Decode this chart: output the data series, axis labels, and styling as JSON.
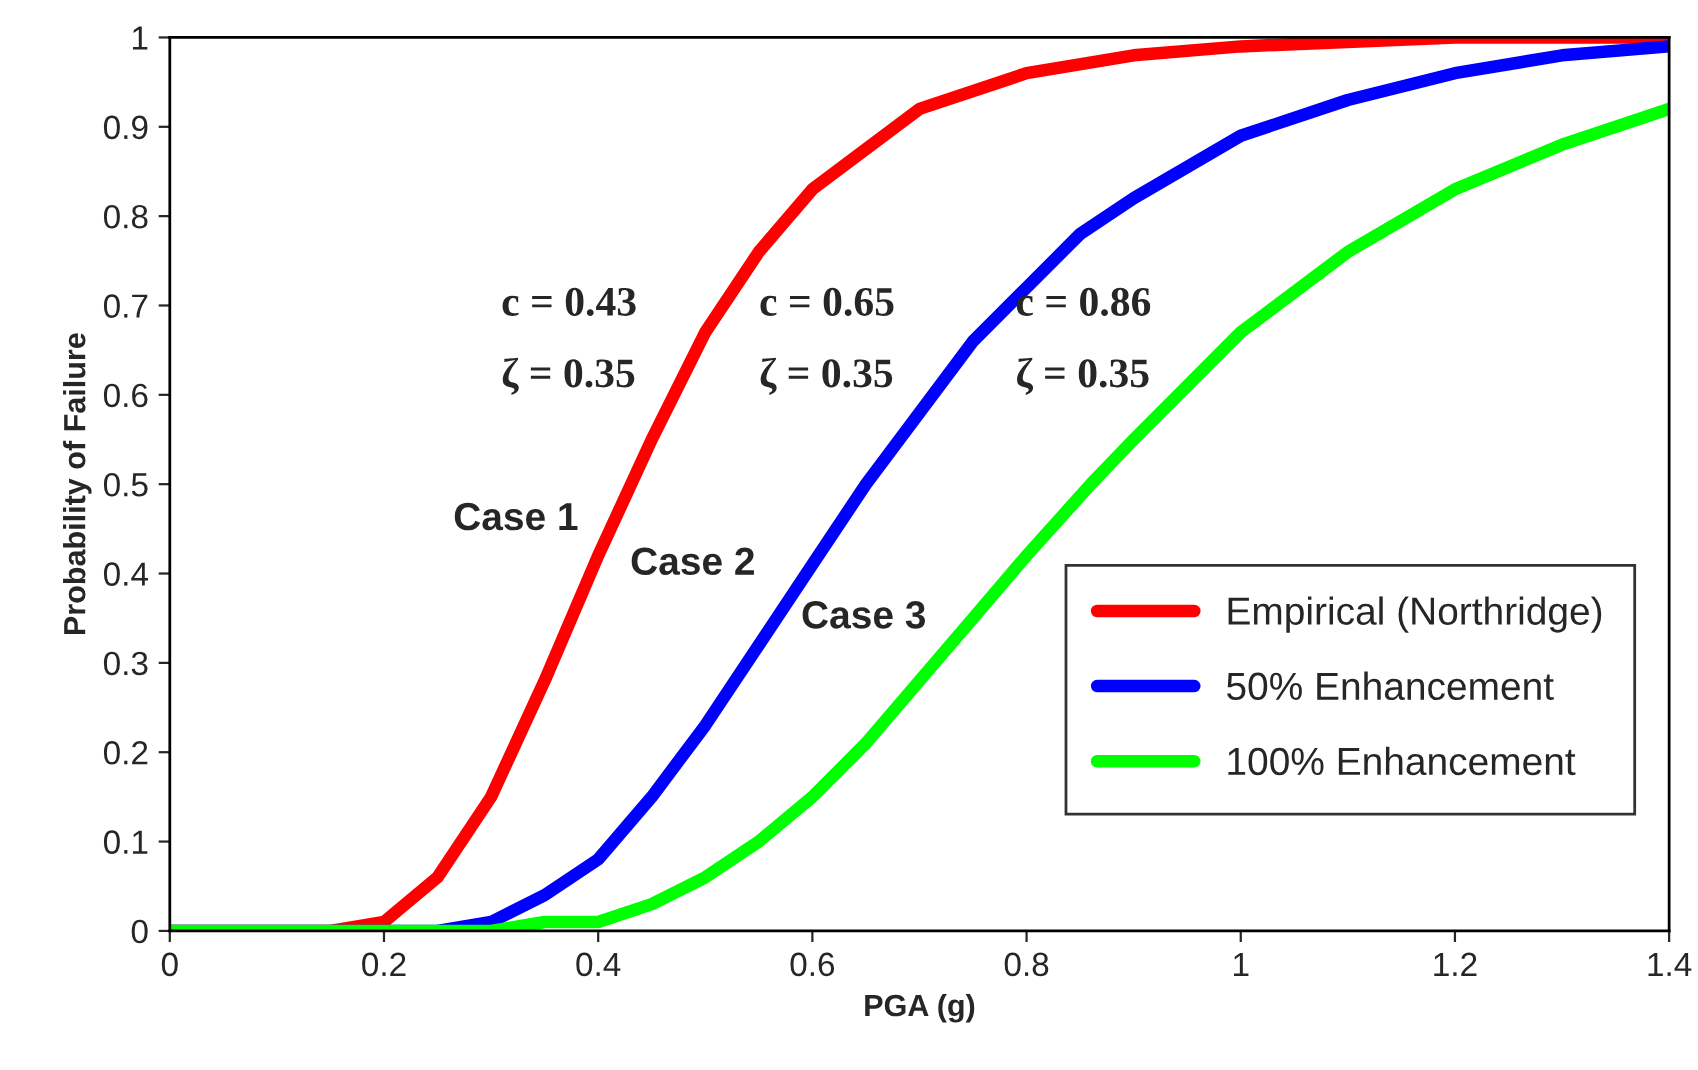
{
  "chart_data": {
    "type": "line",
    "xlabel": "PGA (g)",
    "ylabel": "Probability of Failure",
    "xlim": [
      0,
      1.4
    ],
    "ylim": [
      0,
      1
    ],
    "xticks": [
      0,
      0.2,
      0.4,
      0.6,
      0.8,
      1,
      1.2,
      1.4
    ],
    "yticks": [
      0,
      0.1,
      0.2,
      0.3,
      0.4,
      0.5,
      0.6,
      0.7,
      0.8,
      0.9,
      1
    ],
    "grid": false,
    "legend": "right",
    "marker": "none",
    "line_style": "solid",
    "series": [
      {
        "name": "Empirical (Northridge)",
        "color": "#ff0000",
        "x": [
          0,
          0.15,
          0.2,
          0.25,
          0.3,
          0.35,
          0.4,
          0.45,
          0.5,
          0.55,
          0.6,
          0.7,
          0.8,
          0.9,
          1.0,
          1.2,
          1.4
        ],
        "values": [
          0,
          0,
          0.01,
          0.06,
          0.15,
          0.28,
          0.42,
          0.55,
          0.67,
          0.76,
          0.83,
          0.92,
          0.96,
          0.98,
          0.99,
          1.0,
          1.0
        ]
      },
      {
        "name": "50% Enhancement",
        "color": "#0000ff",
        "x": [
          0,
          0.25,
          0.3,
          0.35,
          0.4,
          0.45,
          0.5,
          0.55,
          0.6,
          0.65,
          0.7,
          0.75,
          0.8,
          0.85,
          0.9,
          1.0,
          1.1,
          1.2,
          1.3,
          1.4
        ],
        "values": [
          0,
          0,
          0.01,
          0.04,
          0.08,
          0.15,
          0.23,
          0.32,
          0.41,
          0.5,
          0.58,
          0.66,
          0.72,
          0.78,
          0.82,
          0.89,
          0.93,
          0.96,
          0.98,
          0.99
        ]
      },
      {
        "name": "100% Enhancement",
        "color": "#00ff00",
        "x": [
          0,
          0.3,
          0.35,
          0.4,
          0.45,
          0.5,
          0.55,
          0.6,
          0.65,
          0.7,
          0.75,
          0.8,
          0.86,
          0.9,
          1.0,
          1.1,
          1.2,
          1.3,
          1.4
        ],
        "values": [
          0,
          0,
          0.01,
          0.01,
          0.03,
          0.06,
          0.1,
          0.15,
          0.21,
          0.28,
          0.35,
          0.42,
          0.5,
          0.55,
          0.67,
          0.76,
          0.83,
          0.88,
          0.92
        ]
      }
    ],
    "annotations": [
      "c = 0.43",
      "ζ = 0.35",
      "c = 0.65",
      "ζ = 0.35",
      "c = 0.86",
      "ζ = 0.35",
      "Case 1",
      "Case 2",
      "Case 3"
    ]
  }
}
